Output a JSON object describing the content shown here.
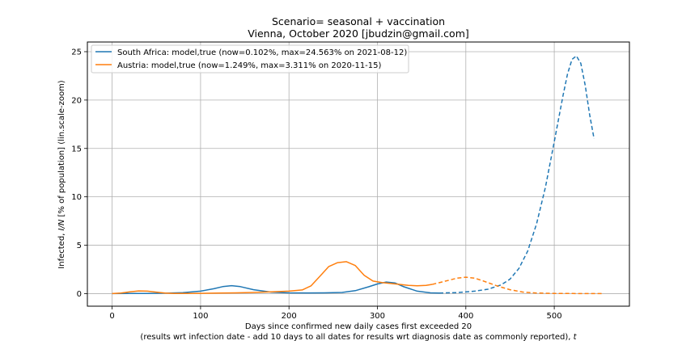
{
  "chart_data": {
    "type": "line",
    "title": "Scenario= seasonal + vaccination",
    "subtitle": "Vienna, October 2020 [jbudzin@gmail.com]",
    "xlabel_line1": "Days since confirmed new daily cases first exceeded 20",
    "xlabel_line2_prefix": "(results wrt infection date - add 10 days to all dates for results wrt diagnosis date as commonly reported), ",
    "xlabel_line2_var": "t",
    "ylabel_prefix": "Infected, ",
    "ylabel_var": "I/N",
    "ylabel_suffix": " [% of population] (lin.scale-zoom)",
    "xlim": [
      -28,
      585
    ],
    "ylim": [
      -1.3,
      26.0
    ],
    "xticks": [
      0,
      100,
      200,
      300,
      400,
      500
    ],
    "yticks": [
      0,
      5,
      10,
      15,
      20,
      25
    ],
    "grid": true,
    "legend_position": "top-left",
    "series": [
      {
        "name": "South Africa: model,true (now=0.102%, max=24.563% on 2021-08-12)",
        "color": "#1f77b4",
        "solid": {
          "x": [
            0,
            20,
            40,
            60,
            80,
            100,
            115,
            125,
            135,
            145,
            160,
            180,
            200,
            220,
            240,
            260,
            275,
            290,
            300,
            310,
            320,
            330,
            345,
            360,
            370
          ],
          "y": [
            0,
            0.01,
            0.02,
            0.04,
            0.1,
            0.25,
            0.5,
            0.72,
            0.82,
            0.72,
            0.4,
            0.15,
            0.08,
            0.07,
            0.08,
            0.12,
            0.3,
            0.7,
            1.0,
            1.2,
            1.1,
            0.7,
            0.25,
            0.08,
            0.06
          ]
        },
        "dashed": {
          "x": [
            370,
            390,
            410,
            425,
            440,
            450,
            460,
            470,
            480,
            490,
            500,
            510,
            515,
            520,
            525,
            530,
            535,
            540,
            545
          ],
          "y": [
            0.06,
            0.1,
            0.25,
            0.45,
            0.9,
            1.5,
            2.6,
            4.4,
            7.2,
            11.0,
            15.7,
            20.5,
            22.7,
            24.2,
            24.56,
            23.8,
            21.5,
            18.5,
            16.0
          ]
        }
      },
      {
        "name": "Austria: model,true (now=1.249%, max=3.311% on 2020-11-15)",
        "color": "#ff7f0e",
        "solid": {
          "x": [
            0,
            10,
            20,
            30,
            40,
            50,
            60,
            70,
            80,
            100,
            120,
            140,
            160,
            180,
            200,
            215,
            225,
            235,
            245,
            255,
            265,
            275,
            285,
            295,
            305,
            315,
            325,
            335,
            345,
            355,
            362
          ],
          "y": [
            0,
            0.05,
            0.18,
            0.28,
            0.25,
            0.15,
            0.06,
            0.02,
            0.02,
            0.03,
            0.05,
            0.08,
            0.12,
            0.18,
            0.25,
            0.38,
            0.8,
            1.8,
            2.8,
            3.2,
            3.3,
            2.9,
            1.9,
            1.3,
            1.15,
            1.05,
            0.95,
            0.85,
            0.8,
            0.85,
            0.95
          ]
        },
        "dashed": {
          "x": [
            362,
            375,
            390,
            400,
            410,
            420,
            435,
            450,
            465,
            480,
            500,
            520,
            540,
            555
          ],
          "y": [
            0.95,
            1.25,
            1.6,
            1.7,
            1.6,
            1.3,
            0.8,
            0.4,
            0.15,
            0.06,
            0.02,
            0.01,
            0.0,
            0.0
          ]
        }
      }
    ]
  }
}
